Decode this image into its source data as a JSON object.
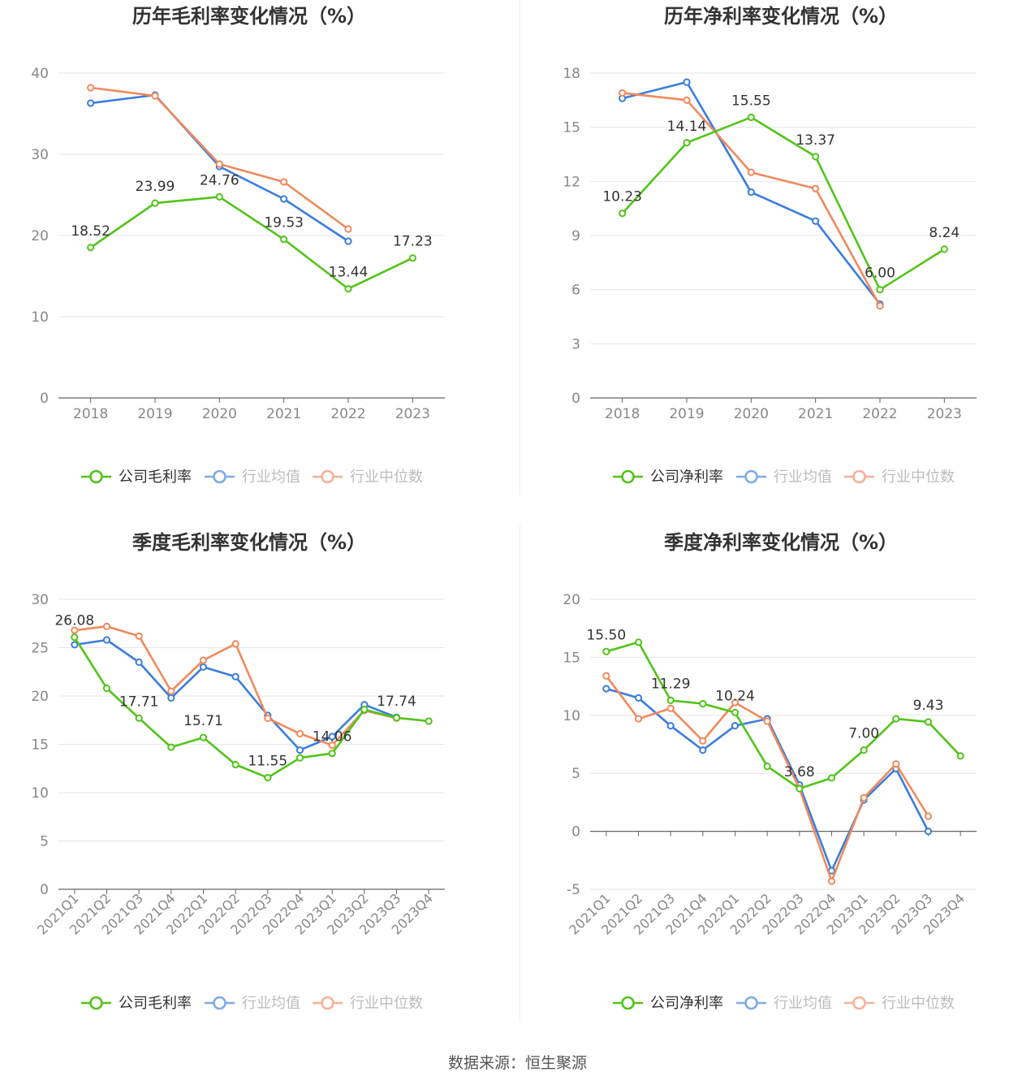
{
  "source": "数据来源：恒生聚源",
  "colors": {
    "company": "#52c41a",
    "industry_avg": "#3b7ddd",
    "industry_median": "#f08a5d",
    "grid": "#e6e6ee",
    "axis": "#666666",
    "tick_text": "#888888"
  },
  "chart_data": [
    {
      "type": "line",
      "title": "历年毛利率变化情况（%）",
      "categories": [
        "2018",
        "2019",
        "2020",
        "2021",
        "2022",
        "2023"
      ],
      "ylim": [
        0,
        40
      ],
      "yticks": [
        0,
        10,
        20,
        30,
        40
      ],
      "rotate_x": false,
      "grid": true,
      "legend": "bottom",
      "series": [
        {
          "name": "公司毛利率",
          "key": "company",
          "values": [
            18.52,
            23.99,
            24.76,
            19.53,
            13.44,
            17.23
          ],
          "labels": [
            "18.52",
            "23.99",
            "24.76",
            "19.53",
            "13.44",
            "17.23"
          ]
        },
        {
          "name": "行业均值",
          "key": "industry_avg",
          "values": [
            36.3,
            37.3,
            28.5,
            24.5,
            19.3,
            null
          ]
        },
        {
          "name": "行业中位数",
          "key": "industry_median",
          "values": [
            38.2,
            37.2,
            28.8,
            26.6,
            20.8,
            null
          ]
        }
      ]
    },
    {
      "type": "line",
      "title": "历年净利率变化情况（%）",
      "categories": [
        "2018",
        "2019",
        "2020",
        "2021",
        "2022",
        "2023"
      ],
      "ylim": [
        0,
        18
      ],
      "yticks": [
        0,
        3,
        6,
        9,
        12,
        15,
        18
      ],
      "rotate_x": false,
      "grid": true,
      "legend": "bottom",
      "series": [
        {
          "name": "公司净利率",
          "key": "company",
          "values": [
            10.23,
            14.14,
            15.55,
            13.37,
            6.0,
            8.24
          ],
          "labels": [
            "10.23",
            "14.14",
            "15.55",
            "13.37",
            "6.00",
            "8.24"
          ]
        },
        {
          "name": "行业均值",
          "key": "industry_avg",
          "values": [
            16.6,
            17.5,
            11.4,
            9.8,
            5.2,
            null
          ]
        },
        {
          "name": "行业中位数",
          "key": "industry_median",
          "values": [
            16.9,
            16.5,
            12.5,
            11.6,
            5.1,
            null
          ]
        }
      ]
    },
    {
      "type": "line",
      "title": "季度毛利率变化情况（%）",
      "categories": [
        "2021Q1",
        "2021Q2",
        "2021Q3",
        "2021Q4",
        "2022Q1",
        "2022Q2",
        "2022Q3",
        "2022Q4",
        "2023Q1",
        "2023Q2",
        "2023Q3",
        "2023Q4"
      ],
      "ylim": [
        0,
        30
      ],
      "yticks": [
        0,
        5,
        10,
        15,
        20,
        25,
        30
      ],
      "rotate_x": true,
      "grid": true,
      "legend": "bottom",
      "series": [
        {
          "name": "公司毛利率",
          "key": "company",
          "values": [
            26.08,
            20.8,
            17.71,
            14.7,
            15.71,
            12.9,
            11.55,
            13.6,
            14.06,
            18.6,
            17.74,
            17.4
          ],
          "labels": [
            "26.08",
            "",
            "17.71",
            "",
            "15.71",
            "",
            "11.55",
            "",
            "14.06",
            "",
            "17.74",
            ""
          ]
        },
        {
          "name": "行业均值",
          "key": "industry_avg",
          "values": [
            25.3,
            25.8,
            23.5,
            19.8,
            23.0,
            22.0,
            18.0,
            14.4,
            15.8,
            19.1,
            17.8,
            null
          ]
        },
        {
          "name": "行业中位数",
          "key": "industry_median",
          "values": [
            26.8,
            27.2,
            26.2,
            20.5,
            23.7,
            25.4,
            17.7,
            16.1,
            14.9,
            18.5,
            17.7,
            null
          ]
        }
      ]
    },
    {
      "type": "line",
      "title": "季度净利率变化情况（%）",
      "categories": [
        "2021Q1",
        "2021Q2",
        "2021Q3",
        "2021Q4",
        "2022Q1",
        "2022Q2",
        "2022Q3",
        "2022Q4",
        "2023Q1",
        "2023Q2",
        "2023Q3",
        "2023Q4"
      ],
      "ylim": [
        -5,
        20
      ],
      "yticks": [
        -5,
        0,
        5,
        10,
        15,
        20
      ],
      "rotate_x": true,
      "grid": true,
      "legend": "bottom",
      "series": [
        {
          "name": "公司净利率",
          "key": "company",
          "values": [
            15.5,
            16.3,
            11.29,
            11.0,
            10.24,
            5.6,
            3.68,
            4.6,
            7.0,
            9.7,
            9.43,
            6.5
          ],
          "labels": [
            "15.50",
            "",
            "11.29",
            "",
            "10.24",
            "",
            "3.68",
            "",
            "7.00",
            "",
            "9.43",
            ""
          ]
        },
        {
          "name": "行业均值",
          "key": "industry_avg",
          "values": [
            12.3,
            11.5,
            9.1,
            7.0,
            9.1,
            9.7,
            4.0,
            -3.4,
            2.7,
            5.4,
            0.0,
            null
          ]
        },
        {
          "name": "行业中位数",
          "key": "industry_median",
          "values": [
            13.4,
            9.7,
            10.6,
            7.8,
            11.1,
            9.5,
            3.7,
            -4.3,
            2.9,
            5.8,
            1.3,
            null
          ]
        }
      ]
    }
  ]
}
